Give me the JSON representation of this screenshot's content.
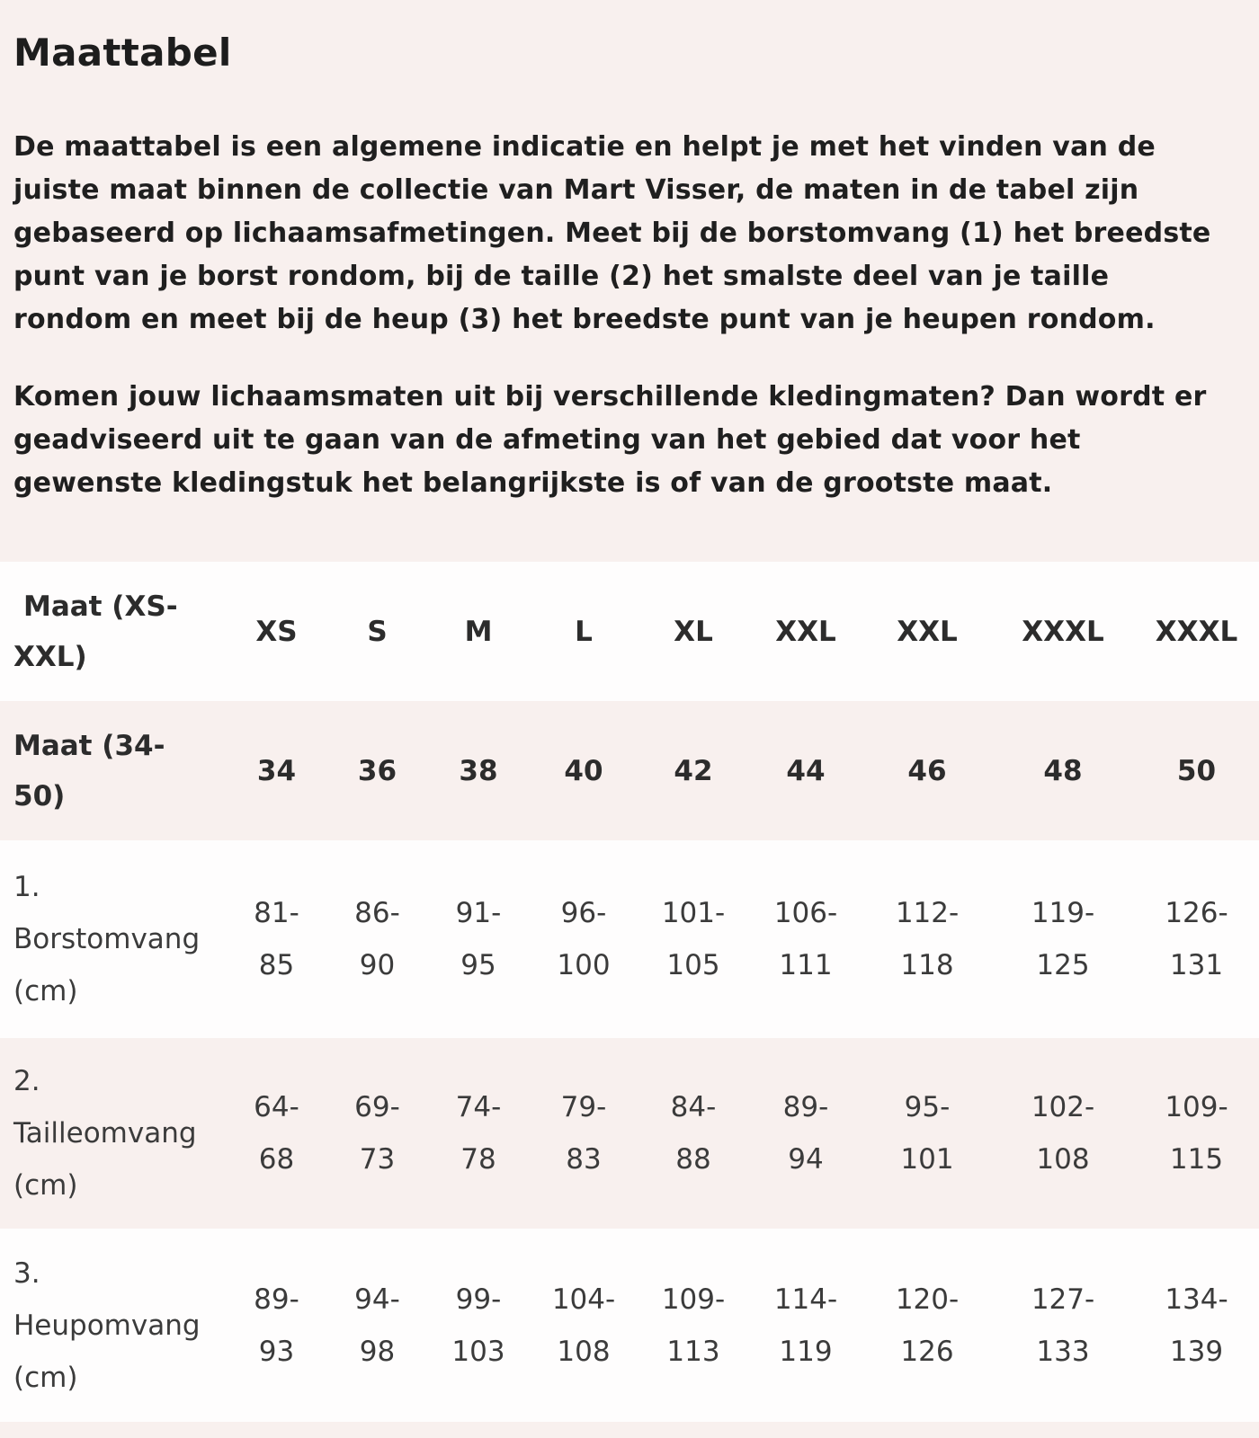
{
  "title": "Maattabel",
  "paragraphs": {
    "p1": "De maattabel is een algemene indicatie en helpt je met het vinden van de\njuiste maat binnen de collectie van Mart Visser, de maten in de tabel zijn\ngebaseerd op lichaamsafmetingen. Meet bij de borstomvang (1) het breedste\npunt van je borst rondom, bij de taille (2) het smalste deel van je taille\nrondom en meet bij de heup (3) het breedste punt van je heupen rondom.",
    "p2": "Komen jouw lichaamsmaten uit bij verschillende kledingmaten? Dan wordt er\ngeadviseerd uit te gaan van de afmeting van het gebied dat voor het\ngewenste kledingstuk het belangrijkste is of van de grootste maat."
  },
  "colors": {
    "page_background": "#f8f0ee",
    "row_stripe_pink": "#f8f0ee",
    "row_white": "#fefdfd",
    "heading_text": "#1d1d1d",
    "body_text": "#1f1f1f",
    "table_bold_text": "#2c2c2c",
    "table_data_text": "#3b3b3b"
  },
  "size_table": {
    "rows": [
      {
        "label": "Maat (XS-\nXXL)",
        "cells": [
          "XS",
          "S",
          "M",
          "L",
          "XL",
          "XXL",
          "XXL",
          "XXXL",
          "XXXL"
        ]
      },
      {
        "label": "Maat (34-\n50)",
        "cells": [
          "34",
          "36",
          "38",
          "40",
          "42",
          "44",
          "46",
          "48",
          "50"
        ]
      },
      {
        "label": "1.\nBorstomvang\n(cm)",
        "cells": [
          "81-\n85",
          "86-\n90",
          "91-\n95",
          "96-\n100",
          "101-\n105",
          "106-\n111",
          "112-\n118",
          "119-\n125",
          "126-\n131"
        ]
      },
      {
        "label": "2.\nTailleomvang\n(cm)",
        "cells": [
          "64-\n68",
          "69-\n73",
          "74-\n78",
          "79-\n83",
          "84-\n88",
          "89-\n94",
          "95-\n101",
          "102-\n108",
          "109-\n115"
        ]
      },
      {
        "label": "3.\nHeupomvang\n(cm)",
        "cells": [
          "89-\n93",
          "94-\n98",
          "99-\n103",
          "104-\n108",
          "109-\n113",
          "114-\n119",
          "120-\n126",
          "127-\n133",
          "134-\n139"
        ]
      }
    ]
  }
}
